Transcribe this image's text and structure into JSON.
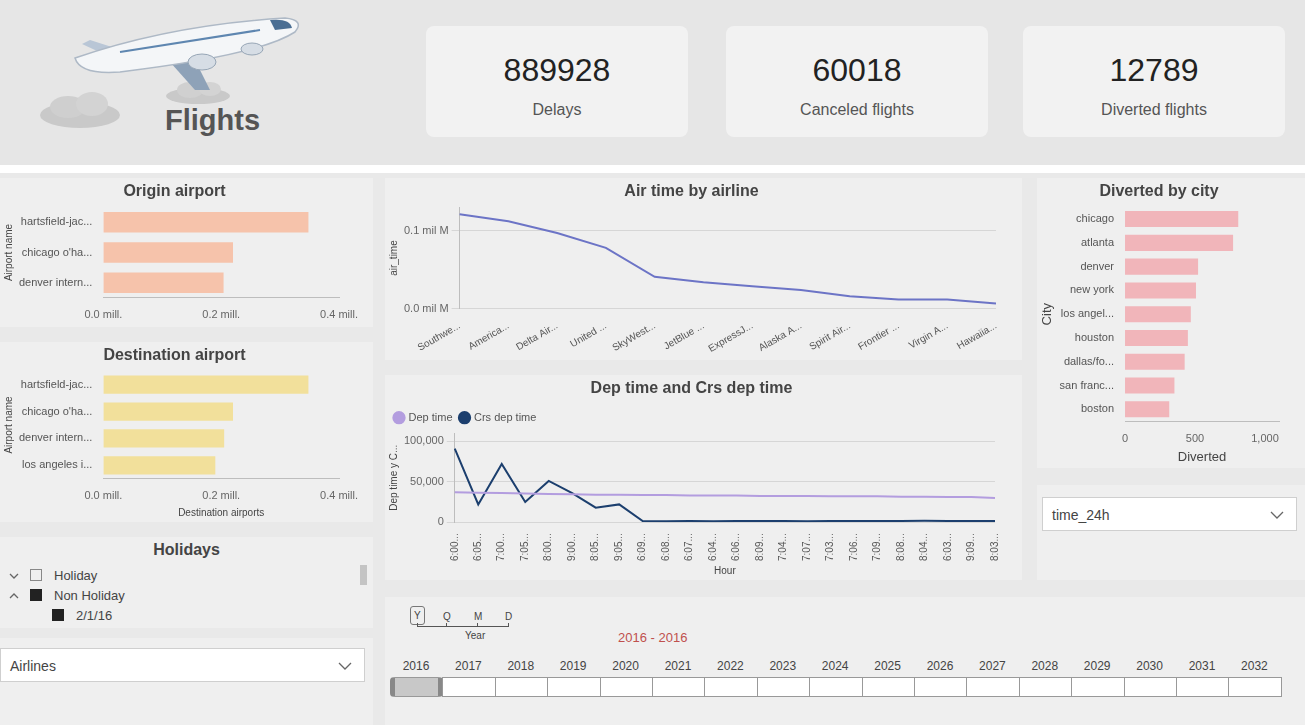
{
  "header": {
    "title": "Flights"
  },
  "cards": [
    {
      "value": 889928,
      "label": "Delays"
    },
    {
      "value": 60018,
      "label": "Canceled flights"
    },
    {
      "value": 12789,
      "label": "Diverted flights"
    }
  ],
  "chart_data": [
    {
      "type": "bar",
      "title": "Origin airport",
      "orientation": "horizontal",
      "categories": [
        "hartsfield-jac...",
        "chicago o'ha...",
        "denver intern..."
      ],
      "values": [
        0.348,
        0.22,
        0.204
      ],
      "color": "#f6c3ab",
      "y_label": "Airport name",
      "xlim": [
        0,
        0.4
      ],
      "xticks": [
        {
          "value": 0,
          "label": "0.0 mill."
        },
        {
          "value": 0.2,
          "label": "0.2 mill."
        },
        {
          "value": 0.4,
          "label": "0.4 mill."
        }
      ],
      "grid": false
    },
    {
      "type": "bar",
      "title": "Destination airport",
      "orientation": "horizontal",
      "categories": [
        "hartsfield-jac...",
        "chicago o'ha...",
        "denver intern...",
        "los angeles i..."
      ],
      "values": [
        0.348,
        0.22,
        0.205,
        0.19
      ],
      "color": "#f2e09b",
      "x_label": "Destination airports",
      "y_label": "Airport name",
      "xlim": [
        0,
        0.4
      ],
      "xticks": [
        {
          "value": 0,
          "label": "0.0 mill."
        },
        {
          "value": 0.2,
          "label": "0.2 mill."
        },
        {
          "value": 0.4,
          "label": "0.4 mill."
        }
      ],
      "grid": false
    },
    {
      "type": "line",
      "title": "Air time by airline",
      "categories": [
        "Southwe...",
        "America...",
        "Delta Air...",
        "United ...",
        "SkyWest...",
        "JetBlue ...",
        "ExpressJ...",
        "Alaska A...",
        "Spirit Air...",
        "Frontier ...",
        "Virgin A...",
        "Hawaiia..."
      ],
      "values": [
        0.121,
        0.112,
        0.097,
        0.078,
        0.041,
        0.034,
        0.029,
        0.024,
        0.016,
        0.012,
        0.012,
        0.007
      ],
      "color": "#6c74c6",
      "y_label": "air_time",
      "ylim": [
        0,
        0.13
      ],
      "yticks": [
        {
          "value": 0,
          "label": "0.0 mil M"
        },
        {
          "value": 0.1,
          "label": "0.1 mil M"
        }
      ],
      "grid": true
    },
    {
      "type": "line",
      "title": "Dep time and Crs dep time",
      "categories": [
        "6:00...",
        "6:05...",
        "7:00...",
        "7:05...",
        "8:00...",
        "9:00...",
        "8:05...",
        "9:05...",
        "6:09...",
        "6:08...",
        "6:07...",
        "6:04...",
        "6:06...",
        "8:09...",
        "7:04...",
        "7:07...",
        "7:03...",
        "7:06...",
        "7:09...",
        "8:08...",
        "8:04...",
        "6:03...",
        "9:09...",
        "8:03..."
      ],
      "series": [
        {
          "name": "Dep time",
          "color": "#b39ddf",
          "values": [
            37000,
            36500,
            36000,
            35500,
            35000,
            34500,
            34000,
            34000,
            33500,
            33500,
            33000,
            33000,
            33000,
            32500,
            32500,
            32500,
            32000,
            32000,
            32000,
            31500,
            31500,
            31000,
            31000,
            30000
          ]
        },
        {
          "name": "Crs dep time",
          "color": "#1c3f6e",
          "values": [
            91000,
            22000,
            72000,
            25000,
            51000,
            36000,
            18000,
            22000,
            1500,
            1200,
            1400,
            1300,
            1500,
            1600,
            1400,
            1300,
            1500,
            1600,
            1500,
            1400,
            1700,
            1600,
            1500,
            1400
          ]
        }
      ],
      "x_label": "Hour",
      "y_label": "Dep time y C...",
      "ylim": [
        0,
        110000
      ],
      "yticks": [
        0,
        {
          "value": 50000,
          "label": "50,000"
        },
        {
          "value": 100000,
          "label": "100,000"
        }
      ],
      "grid": true,
      "legend": "top-left"
    },
    {
      "type": "bar",
      "title": "Diverted by city",
      "orientation": "horizontal",
      "categories": [
        "chicago",
        "atlanta",
        "denver",
        "new york",
        "los angel...",
        "houston",
        "dallas/fo...",
        "san franc...",
        "boston"
      ],
      "values": [
        809,
        772,
        522,
        507,
        470,
        449,
        426,
        353,
        316
      ],
      "color": "#f1b5ba",
      "x_label": "Diverted",
      "y_label": "City",
      "xlim": [
        0,
        1100
      ],
      "xticks": [
        0,
        500,
        {
          "value": 1000,
          "label": "1,000"
        }
      ],
      "grid": false
    }
  ],
  "slicers": {
    "holidays": {
      "title": "Holidays",
      "items": [
        {
          "label": "Holiday",
          "checked": false,
          "expanded": false
        },
        {
          "label": "Non Holiday",
          "checked": true,
          "expanded": true,
          "children": [
            {
              "label": "2/1/16",
              "checked": true
            }
          ]
        }
      ]
    },
    "airlines": {
      "label": "Airlines"
    },
    "time_24h": {
      "label": "time_24h"
    },
    "timeline": {
      "granularity": [
        "Y",
        "Q",
        "M",
        "D"
      ],
      "selected_granularity": "Y",
      "level_label": "Year",
      "range_label": "2016 - 2016",
      "years": [
        2016,
        2017,
        2018,
        2019,
        2020,
        2021,
        2022,
        2023,
        2024,
        2025,
        2026,
        2027,
        2028,
        2029,
        2030,
        2031,
        2032
      ],
      "selected": [
        2016
      ]
    }
  }
}
